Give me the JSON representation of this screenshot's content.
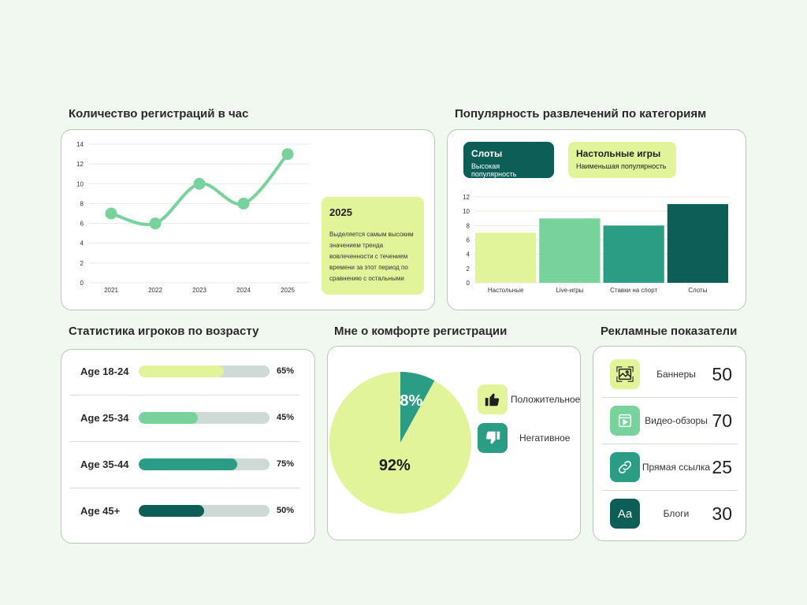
{
  "colors": {
    "background": "#f1f8ef",
    "lime": "#e2f49a",
    "mint": "#78d29c",
    "teal": "#2b9d84",
    "dark_teal": "#0d5e57",
    "track": "#cfd9d6"
  },
  "registrations": {
    "title": "Количество регистраций в час",
    "note": {
      "year": "2025",
      "text": "Выделяется самым высоким значением тренда вовлеченности с течением времени за этот период по сравнению с остальными"
    }
  },
  "popularity": {
    "title": "Популярность развлечений по категориям",
    "tags": [
      {
        "name": "Слоты",
        "sub": "Высокая популярность"
      },
      {
        "name": "Настольные игры",
        "sub": "Наименьшая популярность"
      }
    ]
  },
  "age_stats": {
    "title": "Статистика игроков по возрасту",
    "rows": [
      {
        "label": "Age 18-24",
        "pct_text": "65%",
        "value": 65,
        "color": "#e2f49a"
      },
      {
        "label": "Age 25-34",
        "pct_text": "45%",
        "value": 45,
        "color": "#78d29c"
      },
      {
        "label": "Age 35-44",
        "pct_text": "75%",
        "value": 75,
        "color": "#2b9d84"
      },
      {
        "label": "Age 45+",
        "pct_text": "50%",
        "value": 50,
        "color": "#0d5e57"
      }
    ]
  },
  "comfort": {
    "title": "Мне о комфорте регистрации",
    "legend": [
      {
        "label": "Положительное",
        "icon": "thumbs-up-icon",
        "color": "#e2f49a"
      },
      {
        "label": "Негативное",
        "icon": "thumbs-down-icon",
        "color": "#2b9d84"
      }
    ]
  },
  "ads": {
    "title": "Рекламные показатели",
    "rows": [
      {
        "label": "Баннеры",
        "value": "50",
        "icon": "image-icon",
        "color": "#e2f49a"
      },
      {
        "label": "Видео-обзоры",
        "value": "70",
        "icon": "video-window-icon",
        "color": "#78d29c"
      },
      {
        "label": "Прямая ссылка",
        "value": "25",
        "icon": "link-icon",
        "color": "#2b9d84"
      },
      {
        "label": "Блоги",
        "value": "30",
        "icon": "text-aa-icon",
        "color": "#0d5e57",
        "glyph": "Aa"
      }
    ]
  },
  "chart_data": [
    {
      "type": "line",
      "title": "Количество регистраций в час",
      "x": [
        "2021",
        "2022",
        "2023",
        "2024",
        "2025"
      ],
      "values": [
        7,
        6,
        10,
        8,
        13
      ],
      "ylim": [
        0,
        14
      ],
      "yticks": [
        0,
        2,
        4,
        6,
        8,
        10,
        12,
        14
      ],
      "grid": true,
      "line_color": "#78d29c"
    },
    {
      "type": "bar",
      "title": "Популярность развлечений по категориям",
      "categories": [
        "Настольные",
        "Live-игры",
        "Ставки на спорт",
        "Слоты"
      ],
      "values": [
        7,
        9,
        8,
        11
      ],
      "colors": [
        "#e2f49a",
        "#78d29c",
        "#2b9d84",
        "#0d5e57"
      ],
      "ylim": [
        0,
        12
      ],
      "yticks": [
        0,
        2,
        4,
        6,
        8,
        10,
        12
      ],
      "grid": true
    },
    {
      "type": "pie",
      "title": "Мне о комфорте регистрации",
      "slices": [
        {
          "label": "Положительное",
          "value": 92,
          "text": "92%",
          "color": "#e2f49a"
        },
        {
          "label": "Негативное",
          "value": 8,
          "text": "8%",
          "color": "#2b9d84"
        }
      ]
    }
  ]
}
